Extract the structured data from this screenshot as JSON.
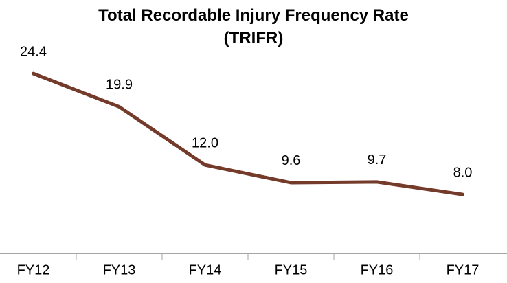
{
  "chart_data": {
    "type": "line",
    "title": "Total Recordable Injury Frequency Rate (TRIFR)",
    "categories": [
      "FY12",
      "FY13",
      "FY14",
      "FY15",
      "FY16",
      "FY17"
    ],
    "values": [
      24.4,
      19.9,
      12,
      9.6,
      9.7,
      8
    ],
    "value_labels": [
      "24.4",
      "19.9",
      "12.0",
      "9.6",
      "9.7",
      "8.0"
    ],
    "color": "#743a2a",
    "ylim": [
      0,
      30
    ]
  }
}
